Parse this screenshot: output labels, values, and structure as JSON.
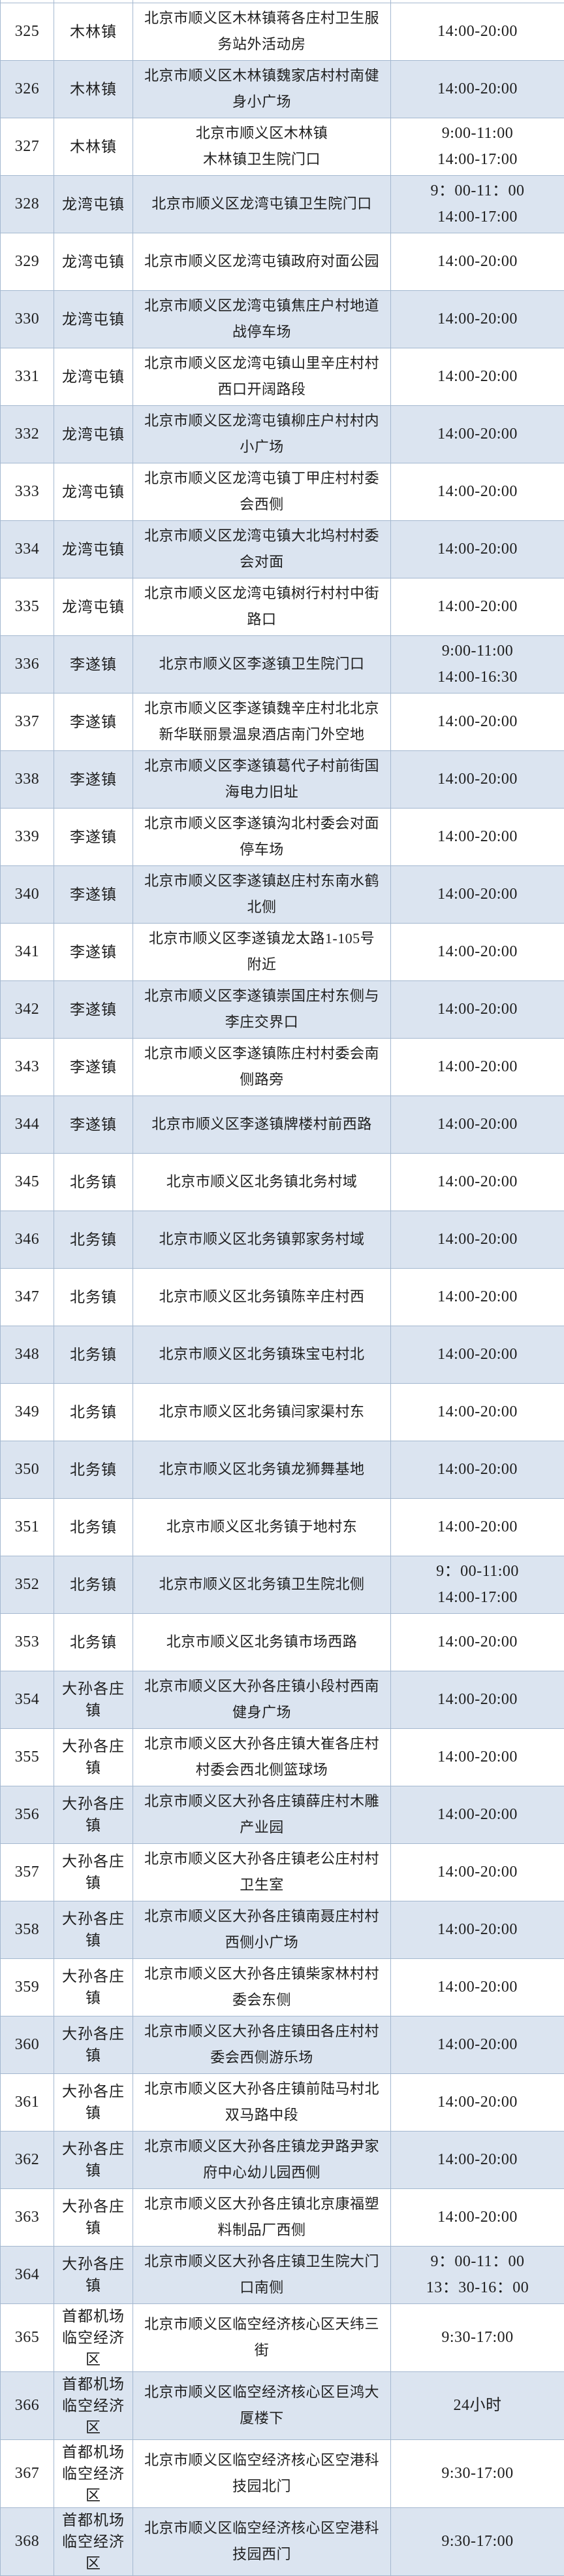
{
  "colors": {
    "zebra_blue": "#dbe4f0",
    "row_white": "#ffffff",
    "border": "#a4b8d0",
    "text": "#1e1e1e"
  },
  "table": {
    "rows": [
      {
        "no": "325",
        "town": "木林镇",
        "address": "北京市顺义区木林镇蒋各庄村卫生服\n务站外活动房",
        "hours": "14:00-20:00"
      },
      {
        "no": "326",
        "town": "木林镇",
        "address": "北京市顺义区木林镇魏家店村村南健\n身小广场",
        "hours": "14:00-20:00"
      },
      {
        "no": "327",
        "town": "木林镇",
        "address": "北京市顺义区木林镇\n木林镇卫生院门口",
        "hours": "9:00-11:00\n14:00-17:00"
      },
      {
        "no": "328",
        "town": "龙湾屯镇",
        "address": "北京市顺义区龙湾屯镇卫生院门口",
        "hours": "9：00-11：00\n14:00-17:00"
      },
      {
        "no": "329",
        "town": "龙湾屯镇",
        "address": "北京市顺义区龙湾屯镇政府对面公园",
        "hours": "14:00-20:00"
      },
      {
        "no": "330",
        "town": "龙湾屯镇",
        "address": "北京市顺义区龙湾屯镇焦庄户村地道\n战停车场",
        "hours": "14:00-20:00"
      },
      {
        "no": "331",
        "town": "龙湾屯镇",
        "address": "北京市顺义区龙湾屯镇山里辛庄村村\n西口开阔路段",
        "hours": "14:00-20:00"
      },
      {
        "no": "332",
        "town": "龙湾屯镇",
        "address": "北京市顺义区龙湾屯镇柳庄户村村内\n小广场",
        "hours": "14:00-20:00"
      },
      {
        "no": "333",
        "town": "龙湾屯镇",
        "address": "北京市顺义区龙湾屯镇丁甲庄村村委\n会西侧",
        "hours": "14:00-20:00"
      },
      {
        "no": "334",
        "town": "龙湾屯镇",
        "address": "北京市顺义区龙湾屯镇大北坞村村委\n会对面",
        "hours": "14:00-20:00"
      },
      {
        "no": "335",
        "town": "龙湾屯镇",
        "address": "北京市顺义区龙湾屯镇树行村村中街\n路口",
        "hours": "14:00-20:00"
      },
      {
        "no": "336",
        "town": "李遂镇",
        "address": "北京市顺义区李遂镇卫生院门口",
        "hours": "9:00-11:00\n14:00-16:30"
      },
      {
        "no": "337",
        "town": "李遂镇",
        "address": "北京市顺义区李遂镇魏辛庄村北北京\n新华联丽景温泉酒店南门外空地",
        "hours": "14:00-20:00"
      },
      {
        "no": "338",
        "town": "李遂镇",
        "address": "北京市顺义区李遂镇葛代子村前街国\n海电力旧址",
        "hours": "14:00-20:00"
      },
      {
        "no": "339",
        "town": "李遂镇",
        "address": "北京市顺义区李遂镇沟北村委会对面\n停车场",
        "hours": "14:00-20:00"
      },
      {
        "no": "340",
        "town": "李遂镇",
        "address": "北京市顺义区李遂镇赵庄村东南水鹤\n北侧",
        "hours": "14:00-20:00"
      },
      {
        "no": "341",
        "town": "李遂镇",
        "address": "北京市顺义区李遂镇龙太路1-105号\n附近",
        "hours": "14:00-20:00"
      },
      {
        "no": "342",
        "town": "李遂镇",
        "address": "北京市顺义区李遂镇崇国庄村东侧与\n李庄交界口",
        "hours": "14:00-20:00"
      },
      {
        "no": "343",
        "town": "李遂镇",
        "address": "北京市顺义区李遂镇陈庄村村委会南\n侧路旁",
        "hours": "14:00-20:00"
      },
      {
        "no": "344",
        "town": "李遂镇",
        "address": "北京市顺义区李遂镇牌楼村前西路",
        "hours": "14:00-20:00"
      },
      {
        "no": "345",
        "town": "北务镇",
        "address": "北京市顺义区北务镇北务村域",
        "hours": "14:00-20:00"
      },
      {
        "no": "346",
        "town": "北务镇",
        "address": "北京市顺义区北务镇郭家务村域",
        "hours": "14:00-20:00"
      },
      {
        "no": "347",
        "town": "北务镇",
        "address": "北京市顺义区北务镇陈辛庄村西",
        "hours": "14:00-20:00"
      },
      {
        "no": "348",
        "town": "北务镇",
        "address": "北京市顺义区北务镇珠宝屯村北",
        "hours": "14:00-20:00"
      },
      {
        "no": "349",
        "town": "北务镇",
        "address": "北京市顺义区北务镇闫家渠村东",
        "hours": "14:00-20:00"
      },
      {
        "no": "350",
        "town": "北务镇",
        "address": "北京市顺义区北务镇龙狮舞基地",
        "hours": "14:00-20:00"
      },
      {
        "no": "351",
        "town": "北务镇",
        "address": "北京市顺义区北务镇于地村东",
        "hours": "14:00-20:00"
      },
      {
        "no": "352",
        "town": "北务镇",
        "address": "北京市顺义区北务镇卫生院北侧",
        "hours": "9：00-11:00\n14:00-17:00"
      },
      {
        "no": "353",
        "town": "北务镇",
        "address": "北京市顺义区北务镇市场西路",
        "hours": "14:00-20:00"
      },
      {
        "no": "354",
        "town": "大孙各庄\n镇",
        "address": "北京市顺义区大孙各庄镇小段村西南\n健身广场",
        "hours": "14:00-20:00"
      },
      {
        "no": "355",
        "town": "大孙各庄\n镇",
        "address": "北京市顺义区大孙各庄镇大崔各庄村\n村委会西北侧篮球场",
        "hours": "14:00-20:00"
      },
      {
        "no": "356",
        "town": "大孙各庄\n镇",
        "address": "北京市顺义区大孙各庄镇薛庄村木雕\n产业园",
        "hours": "14:00-20:00"
      },
      {
        "no": "357",
        "town": "大孙各庄\n镇",
        "address": "北京市顺义区大孙各庄镇老公庄村村\n卫生室",
        "hours": "14:00-20:00"
      },
      {
        "no": "358",
        "town": "大孙各庄\n镇",
        "address": "北京市顺义区大孙各庄镇南聂庄村村\n西侧小广场",
        "hours": "14:00-20:00"
      },
      {
        "no": "359",
        "town": "大孙各庄\n镇",
        "address": "北京市顺义区大孙各庄镇柴家林村村\n委会东侧",
        "hours": "14:00-20:00"
      },
      {
        "no": "360",
        "town": "大孙各庄\n镇",
        "address": "北京市顺义区大孙各庄镇田各庄村村\n委会西侧游乐场",
        "hours": "14:00-20:00"
      },
      {
        "no": "361",
        "town": "大孙各庄\n镇",
        "address": "北京市顺义区大孙各庄镇前陆马村北\n双马路中段",
        "hours": "14:00-20:00"
      },
      {
        "no": "362",
        "town": "大孙各庄\n镇",
        "address": "北京市顺义区大孙各庄镇龙尹路尹家\n府中心幼儿园西侧",
        "hours": "14:00-20:00"
      },
      {
        "no": "363",
        "town": "大孙各庄\n镇",
        "address": "北京市顺义区大孙各庄镇北京康福塑\n料制品厂西侧",
        "hours": "14:00-20:00"
      },
      {
        "no": "364",
        "town": "大孙各庄\n镇",
        "address": "北京市顺义区大孙各庄镇卫生院大门\n口南侧",
        "hours": "9：00-11：00\n13：30-16：00"
      },
      {
        "no": "365",
        "town": "首都机场\n临空经济\n区",
        "address": "北京市顺义区临空经济核心区天纬三\n街",
        "hours": "9:30-17:00"
      },
      {
        "no": "366",
        "town": "首都机场\n临空经济\n区",
        "address": "北京市顺义区临空经济核心区巨鸿大\n厦楼下",
        "hours": "24小时"
      },
      {
        "no": "367",
        "town": "首都机场\n临空经济\n区",
        "address": "北京市顺义区临空经济核心区空港科\n技园北门",
        "hours": "9:30-17:00"
      },
      {
        "no": "368",
        "town": "首都机场\n临空经济\n区",
        "address": "北京市顺义区临空经济核心区空港科\n技园西门",
        "hours": "9:30-17:00"
      }
    ]
  }
}
